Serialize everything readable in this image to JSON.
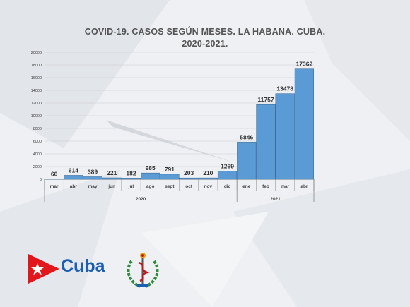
{
  "chart_data": {
    "type": "bar",
    "title_lines": [
      "COVID-19. CASOS SEGÚN MESES. LA HABANA. CUBA.",
      "2020-2021."
    ],
    "categories": [
      "mar",
      "abr",
      "may",
      "jun",
      "jul",
      "ago",
      "sept",
      "oct",
      "nov",
      "dic",
      "ene",
      "feb",
      "mar",
      "abr"
    ],
    "groups": [
      {
        "label": "2020",
        "count": 10
      },
      {
        "label": "2021",
        "count": 4
      }
    ],
    "values": [
      60,
      614,
      389,
      221,
      182,
      985,
      791,
      203,
      210,
      1269,
      5846,
      11757,
      13478,
      17362
    ],
    "value_labels": [
      "60",
      "614",
      "389",
      "221",
      "182",
      "985",
      "791",
      "203",
      "210",
      "1269",
      "5846",
      "11757",
      "13478",
      "17362"
    ],
    "ylim": [
      0,
      20000
    ],
    "yticks": [
      "0",
      "2000",
      "4000",
      "6000",
      "8000",
      "10000",
      "12000",
      "14000",
      "16000",
      "18000",
      "20000"
    ],
    "ytick_values": [
      0,
      2000,
      4000,
      6000,
      8000,
      10000,
      12000,
      14000,
      16000,
      18000,
      20000
    ],
    "gridlines": true,
    "legend": "none",
    "bar_color": "#5b9bd5",
    "xlabel": "",
    "ylabel": ""
  },
  "logos": {
    "cuba_text": "Cuba",
    "flag_colors": {
      "red": "#e3161b",
      "blue": "#1a5fb4",
      "star": "#ffffff"
    }
  }
}
